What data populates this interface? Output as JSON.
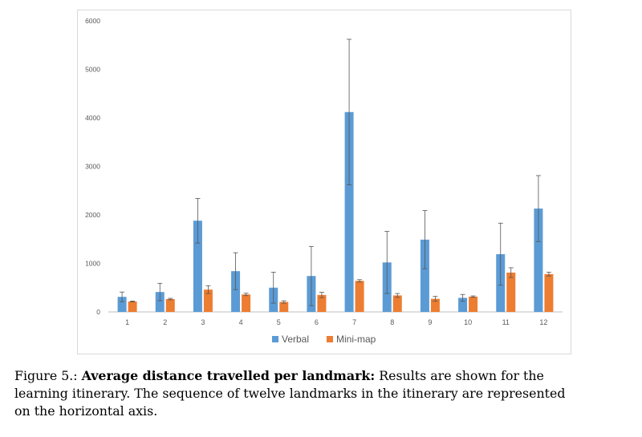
{
  "chart_data": {
    "type": "bar",
    "categories": [
      "1",
      "2",
      "3",
      "4",
      "5",
      "6",
      "7",
      "8",
      "9",
      "10",
      "11",
      "12"
    ],
    "series": [
      {
        "name": "Verbal",
        "color": "#5b9bd5",
        "values": [
          310,
          410,
          1880,
          840,
          500,
          740,
          4120,
          1020,
          1490,
          290,
          1190,
          2130
        ],
        "errors": [
          100,
          180,
          460,
          380,
          320,
          610,
          1500,
          640,
          600,
          70,
          640,
          680
        ]
      },
      {
        "name": "Mini-map",
        "color": "#ed7d31",
        "values": [
          215,
          265,
          460,
          360,
          205,
          350,
          640,
          340,
          270,
          315,
          810,
          780
        ],
        "errors": [
          10,
          15,
          80,
          25,
          25,
          55,
          25,
          40,
          50,
          15,
          100,
          40
        ]
      }
    ],
    "ylim": [
      0,
      6000
    ],
    "yticks": [
      0,
      1000,
      2000,
      3000,
      4000,
      5000,
      6000
    ],
    "grid": false,
    "legend_position": "bottom"
  },
  "caption": {
    "label": "Figure 5.: ",
    "title": "Average distance travelled per landmark:",
    "text_line1": " Results are shown for the",
    "text_line2": "learning itinerary. The sequence of twelve landmarks in the itinerary are represented",
    "text_line3": "on the horizontal axis."
  }
}
